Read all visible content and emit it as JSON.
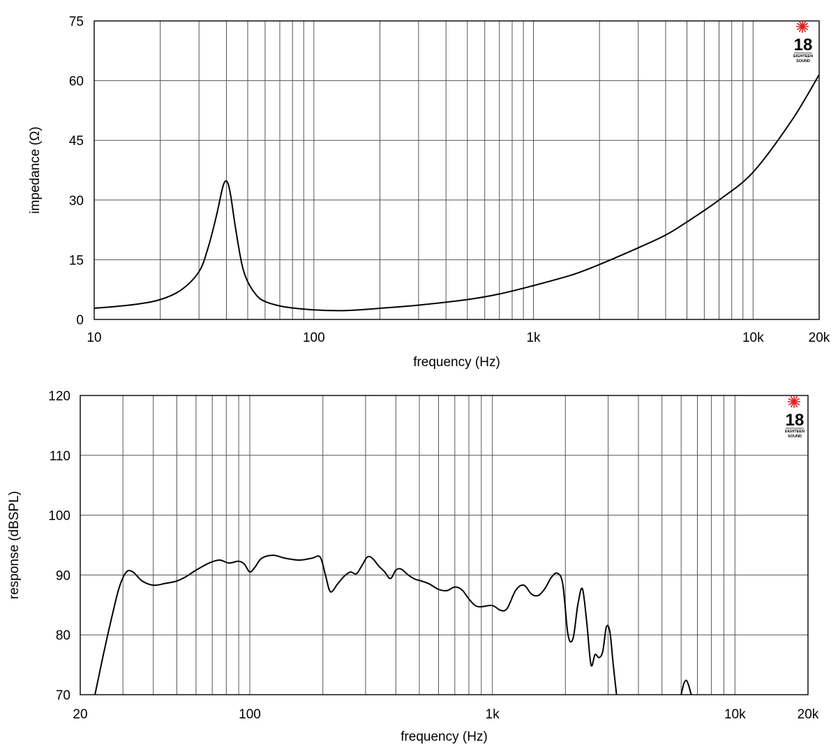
{
  "logo": {
    "text": "18",
    "subtext": "EIGHTEEN SOUND",
    "accent_color": "#e02020"
  },
  "chart_data": [
    {
      "type": "line",
      "xlabel": "frequency (Hz)",
      "ylabel": "impedance (Ω)",
      "xscale": "log",
      "xlim": [
        10,
        20000
      ],
      "ylim": [
        0,
        75
      ],
      "x_tick_labels": [
        {
          "value": 10,
          "label": "10"
        },
        {
          "value": 100,
          "label": "100"
        },
        {
          "value": 1000,
          "label": "1k"
        },
        {
          "value": 10000,
          "label": "10k"
        },
        {
          "value": 20000,
          "label": "20k"
        }
      ],
      "y_ticks": [
        0,
        15,
        30,
        45,
        60,
        75
      ],
      "grid": true,
      "series": [
        {
          "x": [
            10,
            15,
            20,
            25,
            30,
            33,
            36,
            38,
            39,
            40,
            41,
            42,
            44,
            47,
            50,
            55,
            60,
            70,
            80,
            100,
            130,
            160,
            200,
            300,
            500,
            700,
            1000,
            1500,
            2000,
            3000,
            4000,
            5000,
            7000,
            10000,
            15000,
            20000
          ],
          "y": [
            2.8,
            3.7,
            5.0,
            7.5,
            12.0,
            18.0,
            26.0,
            32.0,
            34.2,
            34.8,
            33.5,
            30.5,
            23.0,
            14.0,
            9.5,
            6.0,
            4.5,
            3.4,
            2.9,
            2.4,
            2.2,
            2.4,
            2.8,
            3.6,
            5.0,
            6.4,
            8.5,
            11.2,
            13.8,
            18.0,
            21.2,
            24.5,
            30.0,
            37.0,
            50.0,
            61.5
          ]
        }
      ]
    },
    {
      "type": "line",
      "xlabel": "frequency (Hz)",
      "ylabel": "response (dBSPL)",
      "xscale": "log",
      "xlim": [
        20,
        20000
      ],
      "ylim": [
        70,
        120
      ],
      "x_tick_labels": [
        {
          "value": 20,
          "label": "20"
        },
        {
          "value": 100,
          "label": "100"
        },
        {
          "value": 1000,
          "label": "1k"
        },
        {
          "value": 10000,
          "label": "10k"
        },
        {
          "value": 20000,
          "label": "20k"
        }
      ],
      "y_ticks": [
        70,
        80,
        90,
        100,
        110,
        120
      ],
      "grid": true,
      "series": [
        {
          "x": [
            23,
            25,
            27,
            29,
            31,
            33,
            36,
            40,
            45,
            50,
            55,
            60,
            68,
            75,
            82,
            90,
            95,
            100,
            105,
            112,
            125,
            140,
            160,
            180,
            195,
            205,
            215,
            230,
            245,
            260,
            275,
            290,
            305,
            320,
            340,
            360,
            380,
            400,
            420,
            450,
            480,
            510,
            550,
            600,
            650,
            700,
            750,
            800,
            850,
            900,
            1000,
            1080,
            1150,
            1250,
            1350,
            1450,
            1550,
            1650,
            1750,
            1850,
            1950,
            2050,
            2150,
            2250,
            2350,
            2450,
            2550,
            2650,
            2750,
            2850,
            2950,
            3050,
            3150,
            3250
          ],
          "y": [
            70.0,
            77.0,
            83.0,
            88.0,
            90.5,
            90.5,
            89.0,
            88.3,
            88.6,
            89.0,
            89.8,
            90.8,
            92.0,
            92.5,
            92.0,
            92.3,
            91.8,
            90.5,
            91.3,
            92.8,
            93.3,
            92.8,
            92.5,
            92.8,
            93.0,
            90.0,
            87.2,
            88.5,
            89.8,
            90.5,
            90.2,
            91.6,
            93.0,
            92.8,
            91.5,
            90.5,
            89.4,
            90.8,
            91.0,
            90.0,
            89.3,
            89.0,
            88.5,
            87.6,
            87.4,
            88.0,
            87.5,
            86.0,
            84.9,
            84.7,
            84.9,
            84.1,
            84.4,
            87.5,
            88.3,
            86.8,
            86.6,
            87.8,
            89.6,
            90.3,
            88.5,
            80.0,
            79.4,
            85.0,
            87.7,
            82.0,
            75.0,
            76.7,
            76.2,
            77.2,
            81.3,
            80.5,
            75.0,
            70.0
          ]
        },
        {
          "x": [
            6000,
            6150,
            6300,
            6450,
            6600
          ],
          "y": [
            70.0,
            71.8,
            72.4,
            71.5,
            70.0
          ]
        }
      ]
    }
  ]
}
